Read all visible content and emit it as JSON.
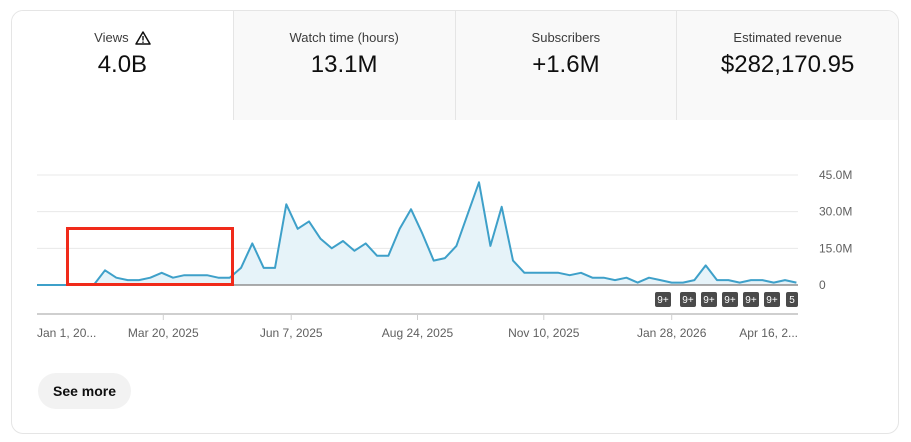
{
  "metrics": [
    {
      "label": "Views",
      "value": "4.0B",
      "icon": "warning-icon",
      "active": true
    },
    {
      "label": "Watch time (hours)",
      "value": "13.1M"
    },
    {
      "label": "Subscribers",
      "value": "+1.6M"
    },
    {
      "label": "Estimated revenue",
      "value": "$282,170.95"
    }
  ],
  "chart_data": {
    "type": "area",
    "x_range": [
      "2025-01-01",
      "2026-04-16"
    ],
    "ylim": [
      0,
      45000000
    ],
    "y_ticks": [
      "0",
      "15.0M",
      "30.0M",
      "45.0M"
    ],
    "x_ticks": [
      {
        "date": "2025-01-01",
        "label": "Jan 1, 20..."
      },
      {
        "date": "2025-03-20",
        "label": "Mar 20, 2025"
      },
      {
        "date": "2025-06-07",
        "label": "Jun 7, 2025"
      },
      {
        "date": "2025-08-24",
        "label": "Aug 24, 2025"
      },
      {
        "date": "2025-11-10",
        "label": "Nov 10, 2025"
      },
      {
        "date": "2026-01-28",
        "label": "Jan 28, 2026"
      },
      {
        "date": "2026-04-16",
        "label": "Apr 16, 2..."
      }
    ],
    "grid": true,
    "series_color": "#3ea0c9",
    "points": [
      [
        "2025-01-01",
        0
      ],
      [
        "2025-01-08",
        0
      ],
      [
        "2025-01-15",
        0
      ],
      [
        "2025-01-22",
        0
      ],
      [
        "2025-01-29",
        0
      ],
      [
        "2025-02-05",
        0
      ],
      [
        "2025-02-12",
        6000000
      ],
      [
        "2025-02-19",
        3000000
      ],
      [
        "2025-02-26",
        2000000
      ],
      [
        "2025-03-05",
        2000000
      ],
      [
        "2025-03-12",
        3000000
      ],
      [
        "2025-03-19",
        5000000
      ],
      [
        "2025-03-26",
        3000000
      ],
      [
        "2025-04-02",
        4000000
      ],
      [
        "2025-04-09",
        4000000
      ],
      [
        "2025-04-16",
        4000000
      ],
      [
        "2025-04-23",
        3000000
      ],
      [
        "2025-04-30",
        3000000
      ],
      [
        "2025-05-07",
        7000000
      ],
      [
        "2025-05-14",
        17000000
      ],
      [
        "2025-05-21",
        7000000
      ],
      [
        "2025-05-28",
        7000000
      ],
      [
        "2025-06-04",
        33000000
      ],
      [
        "2025-06-11",
        23000000
      ],
      [
        "2025-06-18",
        26000000
      ],
      [
        "2025-06-25",
        19000000
      ],
      [
        "2025-07-02",
        15000000
      ],
      [
        "2025-07-09",
        18000000
      ],
      [
        "2025-07-16",
        14000000
      ],
      [
        "2025-07-23",
        17000000
      ],
      [
        "2025-07-30",
        12000000
      ],
      [
        "2025-08-06",
        12000000
      ],
      [
        "2025-08-13",
        23000000
      ],
      [
        "2025-08-20",
        31000000
      ],
      [
        "2025-08-27",
        21000000
      ],
      [
        "2025-09-03",
        10000000
      ],
      [
        "2025-09-10",
        11000000
      ],
      [
        "2025-09-17",
        16000000
      ],
      [
        "2025-09-24",
        29000000
      ],
      [
        "2025-10-01",
        42000000
      ],
      [
        "2025-10-08",
        16000000
      ],
      [
        "2025-10-15",
        32000000
      ],
      [
        "2025-10-22",
        10000000
      ],
      [
        "2025-10-29",
        5000000
      ],
      [
        "2025-11-05",
        5000000
      ],
      [
        "2025-11-12",
        5000000
      ],
      [
        "2025-11-19",
        5000000
      ],
      [
        "2025-11-26",
        4000000
      ],
      [
        "2025-12-03",
        5000000
      ],
      [
        "2025-12-10",
        3000000
      ],
      [
        "2025-12-17",
        3000000
      ],
      [
        "2025-12-24",
        2000000
      ],
      [
        "2025-12-31",
        3000000
      ],
      [
        "2026-01-07",
        1000000
      ],
      [
        "2026-01-14",
        3000000
      ],
      [
        "2026-01-21",
        2000000
      ],
      [
        "2026-01-28",
        1000000
      ],
      [
        "2026-02-04",
        1000000
      ],
      [
        "2026-02-11",
        2000000
      ],
      [
        "2026-02-18",
        8000000
      ],
      [
        "2026-02-25",
        2000000
      ],
      [
        "2026-03-04",
        2000000
      ],
      [
        "2026-03-11",
        1000000
      ],
      [
        "2026-03-18",
        2000000
      ],
      [
        "2026-03-25",
        2000000
      ],
      [
        "2026-04-01",
        1000000
      ],
      [
        "2026-04-08",
        2000000
      ],
      [
        "2026-04-15",
        1000000
      ]
    ],
    "annotations": [
      "9+",
      "9+",
      "9+",
      "9+",
      "9+",
      "9+",
      "5"
    ]
  },
  "footer": {
    "see_more": "See more"
  }
}
